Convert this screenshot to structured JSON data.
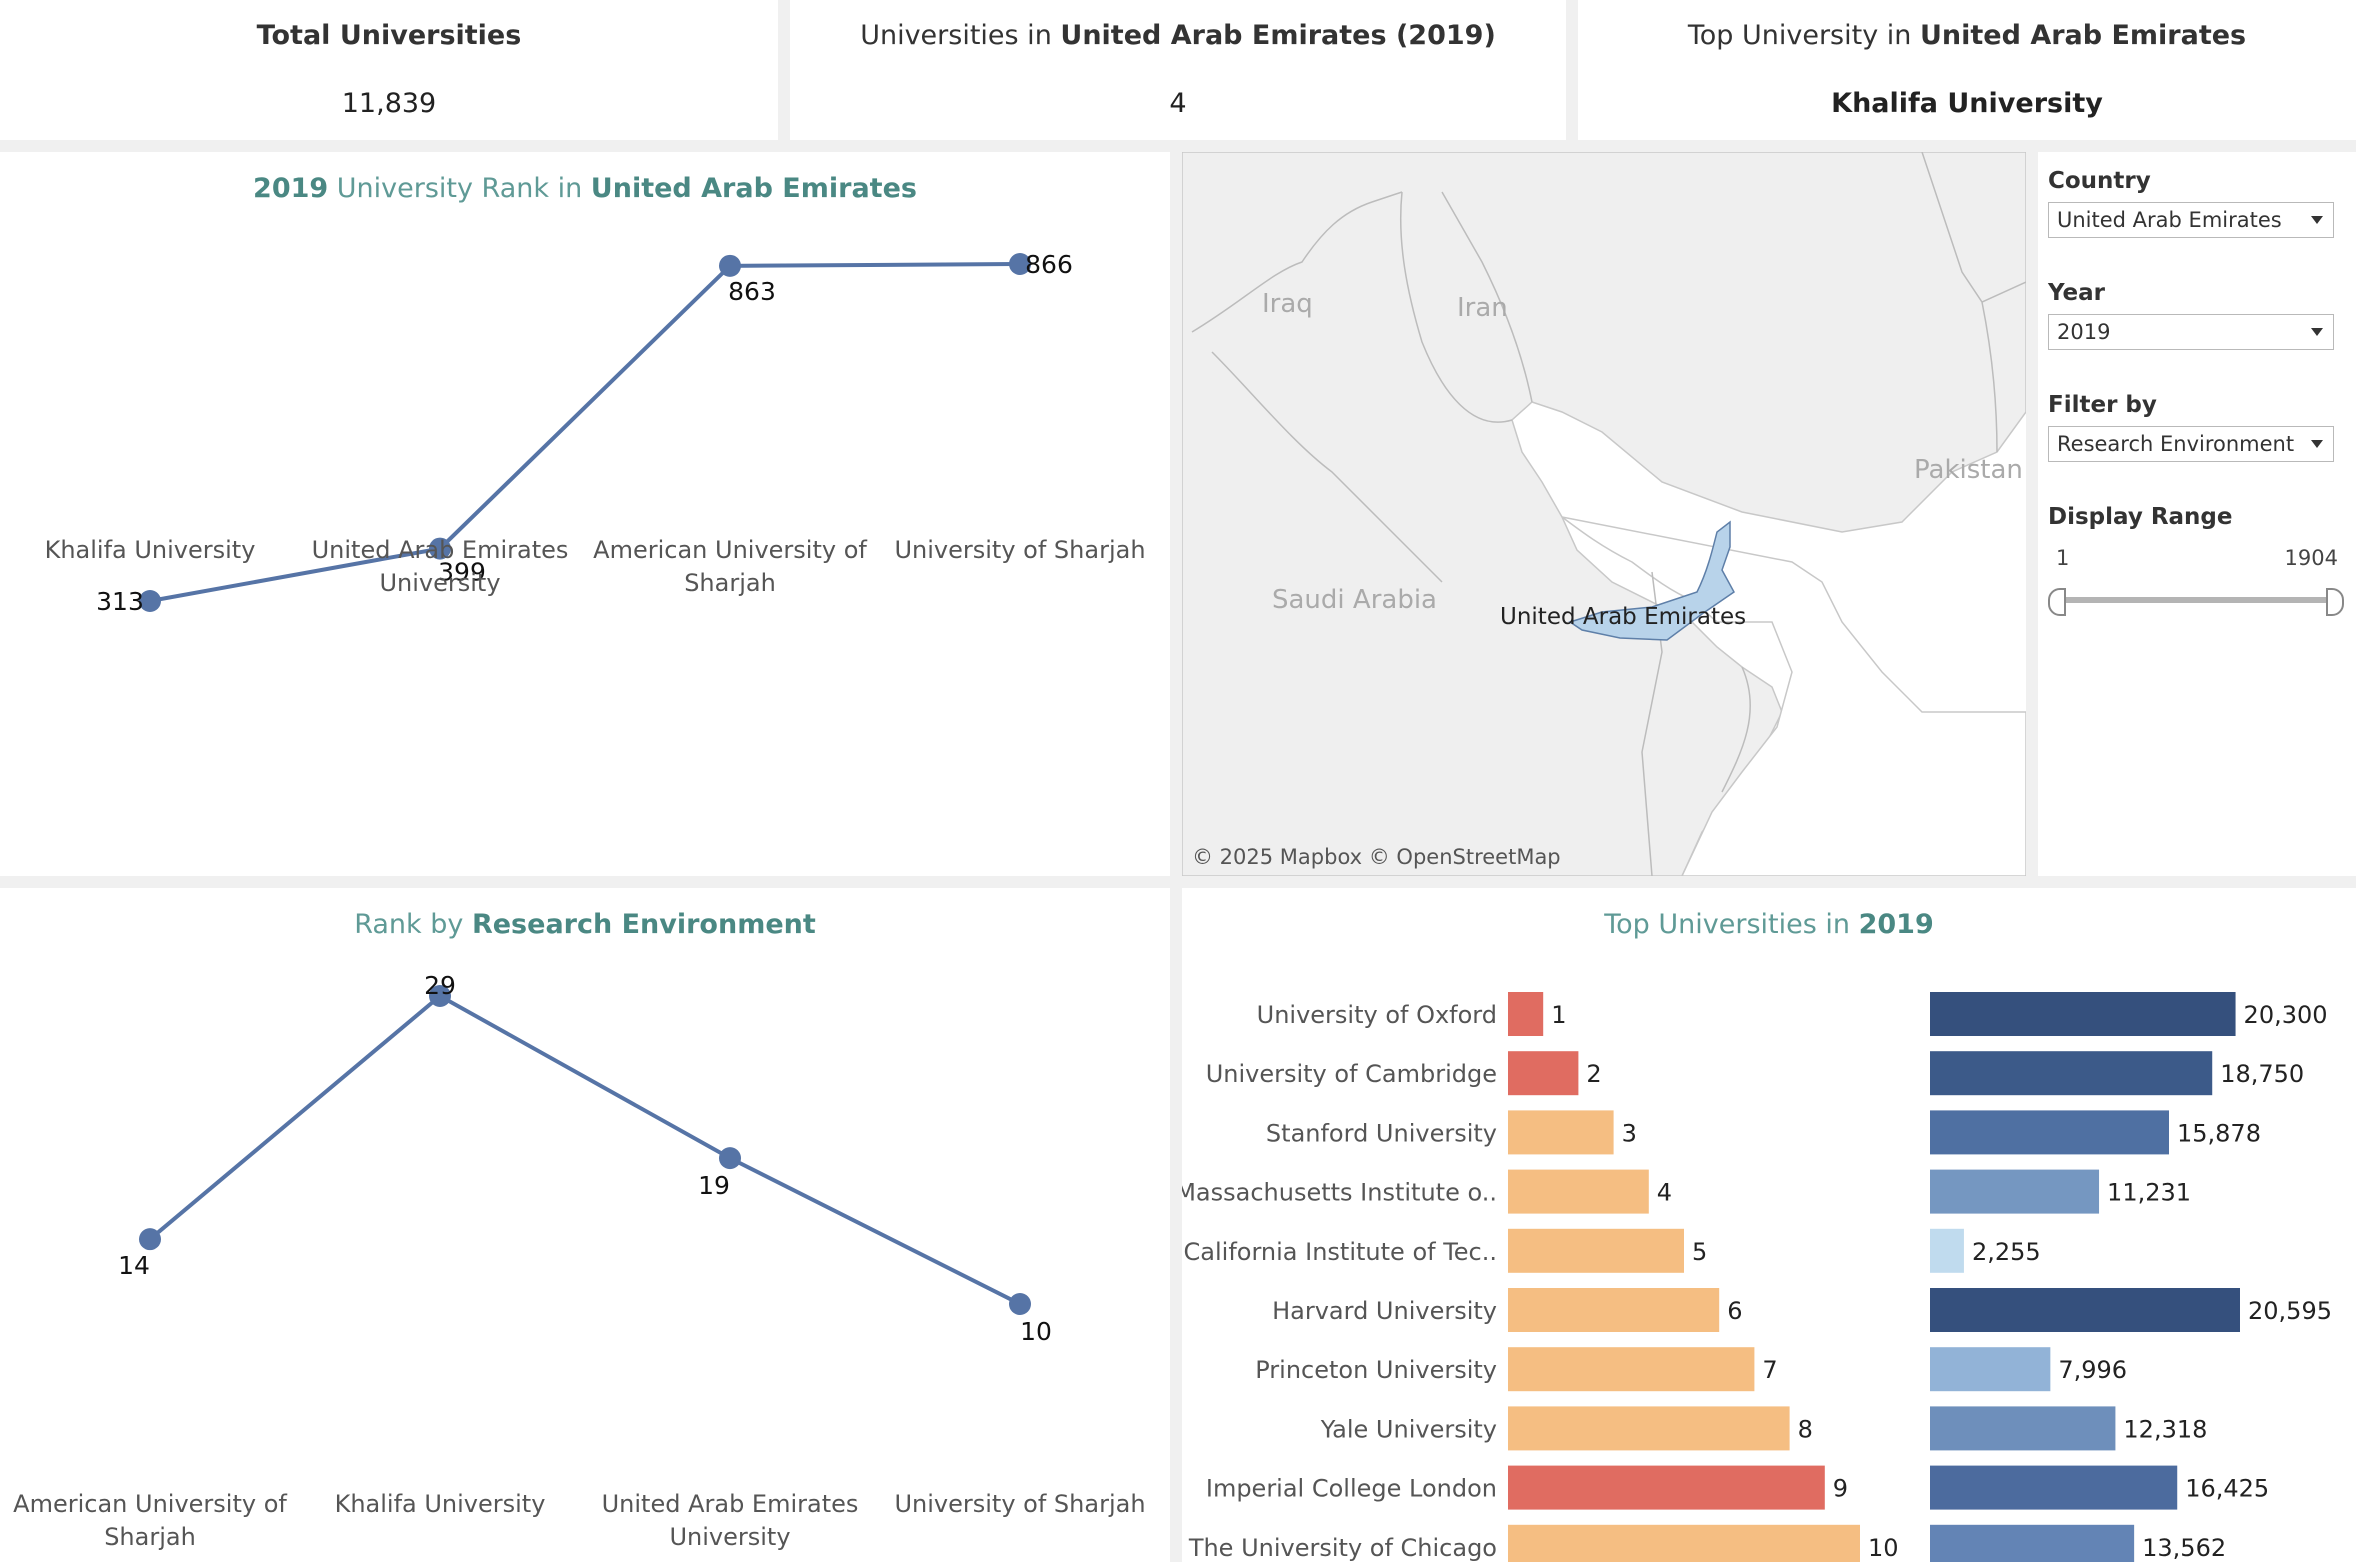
{
  "kpis": {
    "total": {
      "label": "Total Universities",
      "value": "11,839"
    },
    "country_count": {
      "label_prefix": "Universities in ",
      "country": "United Arab Emirates",
      "year_suffix": " (2019)",
      "value": "4"
    },
    "top_university": {
      "label_prefix": "Top University in ",
      "country": "United Arab Emirates",
      "value": "Khalifa University"
    }
  },
  "rank_panel": {
    "year": "2019",
    "title_middle": " University Rank in ",
    "country": "United Arab Emirates"
  },
  "research_panel": {
    "title_prefix": "Rank by ",
    "metric": "Research Environment"
  },
  "top_panel": {
    "title_prefix": "Top Universities in ",
    "year": "2019"
  },
  "map": {
    "labels": {
      "iraq": "Iraq",
      "iran": "Iran",
      "pakistan": "Pakistan",
      "saudi": "Saudi Arabia",
      "selected": "United Arab Emirates"
    },
    "attribution": "© 2025 Mapbox  © OpenStreetMap",
    "colors": {
      "land": "#efefef",
      "highlight": "#b8d3ea",
      "water": "#ffffff"
    }
  },
  "filters": {
    "country": {
      "label": "Country",
      "value": "United Arab Emirates"
    },
    "year": {
      "label": "Year",
      "value": "2019"
    },
    "filter_by": {
      "label": "Filter by",
      "value": "Research Environment"
    },
    "display_range": {
      "label": "Display Range",
      "min": "1",
      "max": "1904",
      "low": 1,
      "high": 1904
    }
  },
  "chart_data": [
    {
      "type": "line",
      "title": "2019 University Rank in United Arab Emirates",
      "categories": [
        "Khalifa University",
        "United Arab Emirates University",
        "American University of Sharjah",
        "University of Sharjah"
      ],
      "category_lines": [
        [
          "Khalifa University"
        ],
        [
          "United Arab Emirates",
          "University"
        ],
        [
          "American University of",
          "Sharjah"
        ],
        [
          "University of Sharjah"
        ]
      ],
      "values": [
        313,
        399,
        863,
        866
      ],
      "color": "#5674a6"
    },
    {
      "type": "line",
      "title": "Rank by Research Environment",
      "categories": [
        "American University of Sharjah",
        "Khalifa University",
        "United Arab Emirates University",
        "University of Sharjah"
      ],
      "category_lines": [
        [
          "American University of",
          "Sharjah"
        ],
        [
          "Khalifa University"
        ],
        [
          "United Arab Emirates",
          "University"
        ],
        [
          "University of Sharjah"
        ]
      ],
      "values": [
        14,
        29,
        19,
        10
      ],
      "color": "#5674a6"
    },
    {
      "type": "bar",
      "title": "Top Universities in 2019",
      "categories": [
        "University of Oxford",
        "University of Cambridge",
        "Stanford University",
        "Massachusetts Institute o..",
        "California Institute of Tec..",
        "Harvard University",
        "Princeton University",
        "Yale University",
        "Imperial College London",
        "The University of Chicago"
      ],
      "series": [
        {
          "values": [
            1,
            2,
            3,
            4,
            5,
            6,
            7,
            8,
            9,
            10
          ],
          "labels": [
            "1",
            "2",
            "3",
            "4",
            "5",
            "6",
            "7",
            "8",
            "9",
            "10"
          ],
          "colors": [
            "#e06c61",
            "#e06c61",
            "#f5be82",
            "#f5be82",
            "#f5be82",
            "#f5be82",
            "#f5be82",
            "#f5be82",
            "#e06c61",
            "#f5be82"
          ]
        },
        {
          "values": [
            20300,
            18750,
            15878,
            11231,
            2255,
            20595,
            7996,
            12318,
            16425,
            13562
          ],
          "labels": [
            "20,300",
            "18,750",
            "15,878",
            "11,231",
            "2,255",
            "20,595",
            "7,996",
            "12,318",
            "16,425",
            "13,562"
          ],
          "colors": [
            "#35507d",
            "#3c5a89",
            "#4f70a2",
            "#7597c1",
            "#c0dbee",
            "#35507d",
            "#92b3d7",
            "#6e8fbb",
            "#4c6b9e",
            "#6384b5"
          ]
        }
      ]
    }
  ]
}
